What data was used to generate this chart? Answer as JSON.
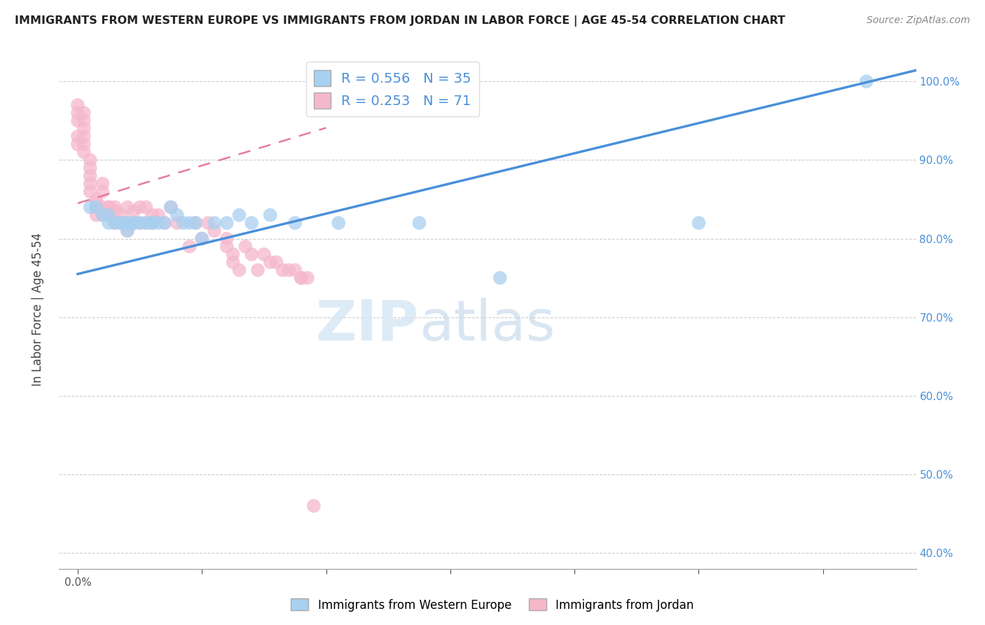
{
  "title": "IMMIGRANTS FROM WESTERN EUROPE VS IMMIGRANTS FROM JORDAN IN LABOR FORCE | AGE 45-54 CORRELATION CHART",
  "source": "Source: ZipAtlas.com",
  "ylabel": "In Labor Force | Age 45-54",
  "xlim": [
    -0.003,
    0.135
  ],
  "ylim": [
    0.38,
    1.04
  ],
  "x_tick_positions": [
    0.0,
    0.02,
    0.04,
    0.06,
    0.08,
    0.1,
    0.12
  ],
  "y_tick_positions": [
    0.4,
    0.5,
    0.6,
    0.7,
    0.8,
    0.9,
    1.0
  ],
  "y_tick_labels": [
    "40.0%",
    "50.0%",
    "60.0%",
    "70.0%",
    "80.0%",
    "90.0%",
    "100.0%"
  ],
  "blue_color": "#a8d0f0",
  "pink_color": "#f5b8cb",
  "blue_line_color": "#4a90d9",
  "pink_line_color": "#e87a9a",
  "blue_R": 0.556,
  "blue_N": 35,
  "pink_R": 0.253,
  "pink_N": 71,
  "legend_label_blue": "Immigrants from Western Europe",
  "legend_label_pink": "Immigrants from Jordan",
  "blue_scatter_x": [
    0.002,
    0.003,
    0.004,
    0.005,
    0.005,
    0.006,
    0.007,
    0.007,
    0.008,
    0.008,
    0.009,
    0.009,
    0.01,
    0.011,
    0.012,
    0.012,
    0.013,
    0.014,
    0.015,
    0.016,
    0.017,
    0.018,
    0.019,
    0.02,
    0.022,
    0.024,
    0.026,
    0.028,
    0.031,
    0.035,
    0.042,
    0.055,
    0.068,
    0.1,
    0.127
  ],
  "blue_scatter_y": [
    0.84,
    0.84,
    0.83,
    0.83,
    0.82,
    0.82,
    0.82,
    0.82,
    0.81,
    0.82,
    0.82,
    0.82,
    0.82,
    0.82,
    0.82,
    0.82,
    0.82,
    0.82,
    0.84,
    0.83,
    0.82,
    0.82,
    0.82,
    0.8,
    0.82,
    0.82,
    0.83,
    0.82,
    0.83,
    0.82,
    0.82,
    0.82,
    0.75,
    0.82,
    1.0
  ],
  "pink_scatter_x": [
    0.0,
    0.0,
    0.0,
    0.0,
    0.0,
    0.001,
    0.001,
    0.001,
    0.001,
    0.001,
    0.001,
    0.002,
    0.002,
    0.002,
    0.002,
    0.002,
    0.003,
    0.003,
    0.003,
    0.003,
    0.003,
    0.004,
    0.004,
    0.004,
    0.004,
    0.005,
    0.005,
    0.005,
    0.006,
    0.006,
    0.006,
    0.007,
    0.007,
    0.008,
    0.008,
    0.008,
    0.009,
    0.009,
    0.01,
    0.01,
    0.011,
    0.011,
    0.012,
    0.012,
    0.013,
    0.014,
    0.015,
    0.016,
    0.018,
    0.019,
    0.02,
    0.021,
    0.022,
    0.024,
    0.024,
    0.025,
    0.025,
    0.026,
    0.027,
    0.028,
    0.029,
    0.03,
    0.031,
    0.032,
    0.033,
    0.034,
    0.035,
    0.036,
    0.036,
    0.037,
    0.038
  ],
  "pink_scatter_y": [
    0.97,
    0.96,
    0.95,
    0.93,
    0.92,
    0.96,
    0.95,
    0.94,
    0.93,
    0.92,
    0.91,
    0.9,
    0.89,
    0.88,
    0.87,
    0.86,
    0.85,
    0.845,
    0.84,
    0.84,
    0.83,
    0.87,
    0.86,
    0.84,
    0.83,
    0.84,
    0.84,
    0.83,
    0.84,
    0.835,
    0.82,
    0.83,
    0.82,
    0.84,
    0.82,
    0.81,
    0.835,
    0.82,
    0.84,
    0.82,
    0.84,
    0.82,
    0.83,
    0.82,
    0.83,
    0.82,
    0.84,
    0.82,
    0.79,
    0.82,
    0.8,
    0.82,
    0.81,
    0.8,
    0.79,
    0.78,
    0.77,
    0.76,
    0.79,
    0.78,
    0.76,
    0.78,
    0.77,
    0.77,
    0.76,
    0.76,
    0.76,
    0.75,
    0.75,
    0.75,
    0.46
  ],
  "watermark_zip": "ZIP",
  "watermark_atlas": "atlas",
  "grid_color": "#cccccc",
  "background_color": "#ffffff"
}
